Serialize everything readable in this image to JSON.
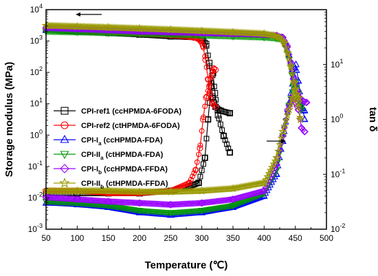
{
  "chart_data": {
    "type": "line",
    "xlabel": "Temperature (℃)",
    "ylabel_left": "Storage modulus (MPa)",
    "ylabel_right": "tan δ",
    "xlim": [
      50,
      500
    ],
    "ylim_left": [
      0.001,
      10000
    ],
    "ylim_right": [
      0.01,
      100
    ],
    "yscale_left": "log",
    "yscale_right": "log",
    "x_ticks": [
      "50",
      "100",
      "150",
      "200",
      "250",
      "300",
      "350",
      "400",
      "450",
      "500"
    ],
    "y_left_ticks": [
      {
        "base": "10",
        "exp": "-3"
      },
      {
        "base": "10",
        "exp": "-2"
      },
      {
        "base": "10",
        "exp": "-1"
      },
      {
        "base": "10",
        "exp": "0"
      },
      {
        "base": "10",
        "exp": "1"
      },
      {
        "base": "10",
        "exp": "2"
      },
      {
        "base": "10",
        "exp": "3"
      },
      {
        "base": "10",
        "exp": "4"
      }
    ],
    "y_right_ticks": [
      {
        "base": "10",
        "exp": "-2"
      },
      {
        "base": "10",
        "exp": "-1"
      },
      {
        "base": "10",
        "exp": "0"
      },
      {
        "base": "10",
        "exp": "1"
      }
    ],
    "legend": {
      "position": "center-left"
    },
    "series": [
      {
        "name": "CPI-ref1 (ccHPMDA-6FODA)",
        "name_main": "CPI-ref1 (ccHPMDA-6FODA)",
        "sub": "",
        "name_after": "",
        "color": "#000000",
        "marker": "square",
        "storage_modulus": [
          [
            50,
            2300
          ],
          [
            100,
            2000
          ],
          [
            150,
            1800
          ],
          [
            200,
            1600
          ],
          [
            250,
            1400
          ],
          [
            290,
            1300
          ],
          [
            300,
            1200
          ],
          [
            307,
            800
          ],
          [
            312,
            200
          ],
          [
            317,
            17
          ],
          [
            322,
            8
          ],
          [
            330,
            6
          ],
          [
            345,
            5
          ]
        ],
        "tan_delta": [
          [
            50,
            0.045
          ],
          [
            100,
            0.045
          ],
          [
            150,
            0.045
          ],
          [
            200,
            0.045
          ],
          [
            250,
            0.05
          ],
          [
            280,
            0.06
          ],
          [
            295,
            0.07
          ],
          [
            305,
            0.2
          ],
          [
            310,
            1.0
          ],
          [
            315,
            4.0
          ],
          [
            318,
            7.0
          ],
          [
            321,
            3.0
          ],
          [
            326,
            1.2
          ],
          [
            335,
            0.5
          ],
          [
            345,
            0.25
          ]
        ]
      },
      {
        "name": "CPI-ref2 (ctHPMDA-6FODA)",
        "name_main": "CPI-ref2 (ctHPMDA-6FODA)",
        "sub": "",
        "name_after": "",
        "color": "#ff0000",
        "marker": "circle",
        "storage_modulus": [
          [
            50,
            2400
          ],
          [
            100,
            2100
          ],
          [
            150,
            1900
          ],
          [
            200,
            1700
          ],
          [
            250,
            1500
          ],
          [
            280,
            1350
          ],
          [
            293,
            1200
          ],
          [
            298,
            1000
          ],
          [
            302,
            700
          ],
          [
            306,
            250
          ],
          [
            310,
            60
          ],
          [
            313,
            20
          ],
          [
            317,
            10
          ],
          [
            322,
            8
          ]
        ],
        "tan_delta": [
          [
            50,
            0.05
          ],
          [
            100,
            0.05
          ],
          [
            150,
            0.045
          ],
          [
            200,
            0.045
          ],
          [
            250,
            0.05
          ],
          [
            280,
            0.07
          ],
          [
            290,
            0.12
          ],
          [
            297,
            0.3
          ],
          [
            302,
            1.0
          ],
          [
            307,
            2.5
          ],
          [
            312,
            4.0
          ],
          [
            316,
            6.5
          ],
          [
            319,
            8.5
          ],
          [
            322,
            8.0
          ]
        ]
      },
      {
        "name": "CPI-Ia (ccHPMDA-FDA)",
        "name_main": "CPI-I",
        "sub": "a",
        "name_after": " (ccHPMDA-FDA)",
        "color": "#0000ff",
        "marker": "triangle-up",
        "storage_modulus": [
          [
            50,
            2200
          ],
          [
            100,
            2100
          ],
          [
            150,
            2000
          ],
          [
            200,
            1900
          ],
          [
            250,
            1800
          ],
          [
            300,
            1700
          ],
          [
            350,
            1600
          ],
          [
            400,
            1500
          ],
          [
            420,
            1400
          ],
          [
            428,
            1300
          ],
          [
            435,
            800
          ],
          [
            440,
            350
          ],
          [
            445,
            120
          ],
          [
            450,
            40
          ],
          [
            455,
            15
          ],
          [
            460,
            8
          ],
          [
            465,
            6
          ]
        ],
        "tan_delta": [
          [
            50,
            0.03
          ],
          [
            100,
            0.028
          ],
          [
            150,
            0.025
          ],
          [
            200,
            0.02
          ],
          [
            250,
            0.018
          ],
          [
            300,
            0.02
          ],
          [
            350,
            0.025
          ],
          [
            400,
            0.04
          ],
          [
            420,
            0.1
          ],
          [
            430,
            0.4
          ],
          [
            440,
            2.0
          ],
          [
            447,
            6.0
          ],
          [
            451,
            10.0
          ],
          [
            455,
            5.0
          ],
          [
            460,
            2.0
          ],
          [
            465,
            1.0
          ]
        ]
      },
      {
        "name": "CPI-IIa (ctHPMDA-FDA)",
        "name_main": "CPI-II",
        "sub": "a",
        "name_after": " (ctHPMDA-FDA)",
        "color": "#009900",
        "marker": "triangle-down",
        "storage_modulus": [
          [
            50,
            2000
          ],
          [
            100,
            1900
          ],
          [
            150,
            1800
          ],
          [
            200,
            1700
          ],
          [
            250,
            1600
          ],
          [
            300,
            1500
          ],
          [
            350,
            1400
          ],
          [
            400,
            1300
          ],
          [
            420,
            1200
          ],
          [
            428,
            1100
          ],
          [
            435,
            600
          ],
          [
            440,
            250
          ],
          [
            445,
            80
          ],
          [
            450,
            30
          ],
          [
            455,
            12
          ],
          [
            460,
            8
          ]
        ],
        "tan_delta": [
          [
            50,
            0.032
          ],
          [
            100,
            0.03
          ],
          [
            150,
            0.027
          ],
          [
            200,
            0.022
          ],
          [
            250,
            0.02
          ],
          [
            300,
            0.022
          ],
          [
            350,
            0.027
          ],
          [
            400,
            0.045
          ],
          [
            420,
            0.12
          ],
          [
            430,
            0.5
          ],
          [
            440,
            1.8
          ],
          [
            447,
            4.0
          ],
          [
            450,
            5.0
          ],
          [
            455,
            3.0
          ],
          [
            460,
            1.5
          ]
        ]
      },
      {
        "name": "CPI-Ib (ccHPMDA-FFDA)",
        "name_main": "CPI-I",
        "sub": "b",
        "name_after": " (ccHPMDA-FFDA)",
        "color": "#9900ff",
        "marker": "diamond",
        "storage_modulus": [
          [
            50,
            2600
          ],
          [
            100,
            2400
          ],
          [
            150,
            2200
          ],
          [
            200,
            2000
          ],
          [
            250,
            1900
          ],
          [
            300,
            1800
          ],
          [
            350,
            1700
          ],
          [
            400,
            1600
          ],
          [
            420,
            1500
          ],
          [
            430,
            1300
          ],
          [
            437,
            700
          ],
          [
            443,
            200
          ],
          [
            448,
            60
          ],
          [
            453,
            25
          ],
          [
            458,
            15
          ],
          [
            463,
            12
          ],
          [
            468,
            11
          ]
        ],
        "tan_delta": [
          [
            50,
            0.038
          ],
          [
            100,
            0.035
          ],
          [
            150,
            0.032
          ],
          [
            200,
            0.03
          ],
          [
            250,
            0.028
          ],
          [
            300,
            0.03
          ],
          [
            350,
            0.035
          ],
          [
            400,
            0.05
          ],
          [
            420,
            0.15
          ],
          [
            430,
            0.5
          ],
          [
            438,
            1.5
          ],
          [
            445,
            2.5
          ],
          [
            450,
            2.0
          ],
          [
            455,
            1.5
          ],
          [
            460,
            0.7
          ],
          [
            465,
            0.6
          ]
        ]
      },
      {
        "name": "CPI-IIb (ctHPMDA-FFDA)",
        "name_main": "CPI-II",
        "sub": "b",
        "name_after": " (ctHPMDA-FFDA)",
        "color": "#999900",
        "marker": "star",
        "storage_modulus": [
          [
            50,
            3100
          ],
          [
            100,
            2900
          ],
          [
            150,
            2700
          ],
          [
            200,
            2500
          ],
          [
            250,
            2300
          ],
          [
            300,
            2100
          ],
          [
            350,
            1900
          ],
          [
            400,
            1700
          ],
          [
            415,
            1500
          ],
          [
            425,
            1300
          ],
          [
            432,
            900
          ],
          [
            438,
            400
          ],
          [
            443,
            150
          ],
          [
            448,
            45
          ],
          [
            452,
            20
          ],
          [
            456,
            15
          ]
        ],
        "tan_delta": [
          [
            50,
            0.05
          ],
          [
            100,
            0.05
          ],
          [
            150,
            0.05
          ],
          [
            200,
            0.048
          ],
          [
            250,
            0.048
          ],
          [
            300,
            0.05
          ],
          [
            350,
            0.055
          ],
          [
            400,
            0.07
          ],
          [
            420,
            0.2
          ],
          [
            430,
            0.6
          ],
          [
            440,
            1.5
          ],
          [
            446,
            2.5
          ],
          [
            450,
            3.5
          ],
          [
            454,
            2.0
          ],
          [
            458,
            1.0
          ]
        ]
      }
    ]
  }
}
